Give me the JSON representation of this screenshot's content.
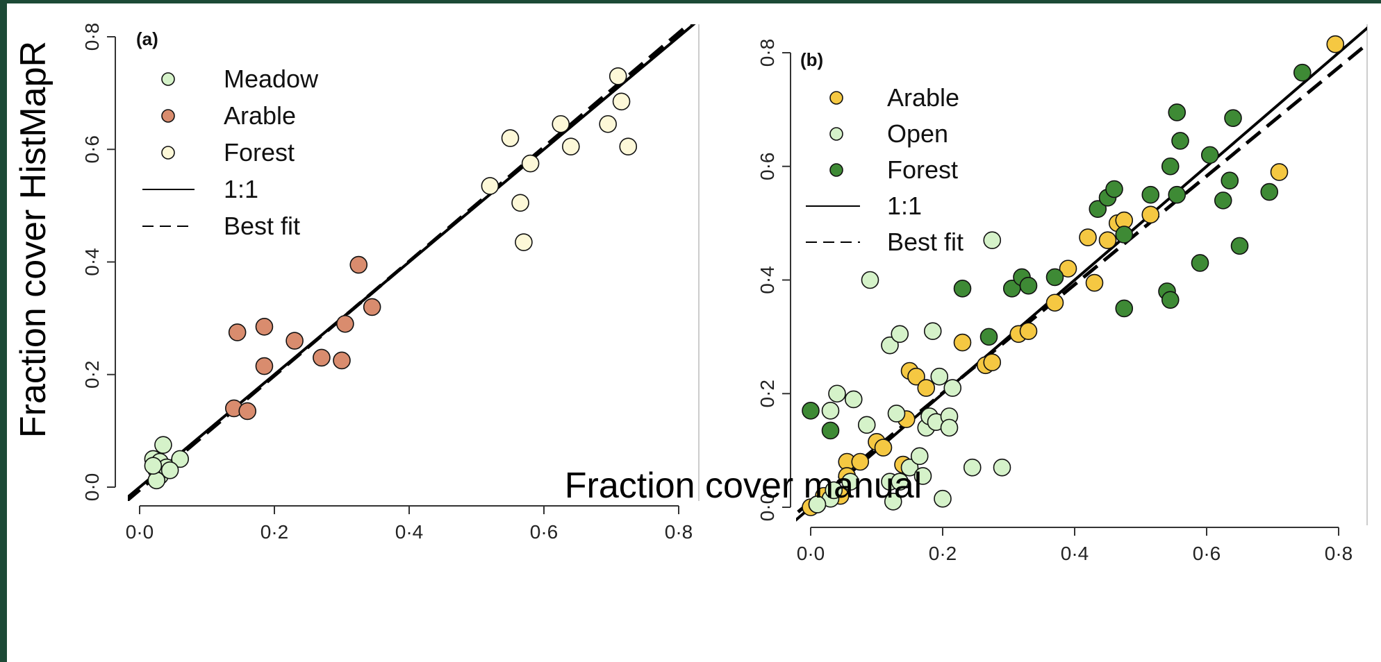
{
  "figure": {
    "xlabel": "Fraction cover manual",
    "ylabel": "Fraction cover HistMapR",
    "tick_labels": [
      "0·0",
      "0·2",
      "0·4",
      "0·6",
      "0·8"
    ]
  },
  "chart_data": [
    {
      "type": "scatter",
      "panel_label": "(a)",
      "title": "",
      "xlabel": "Fraction cover manual",
      "ylabel": "Fraction cover HistMapR",
      "xlim": [
        0,
        0.8
      ],
      "ylim": [
        0,
        0.8
      ],
      "ticks": [
        0,
        0.2,
        0.4,
        0.6,
        0.8
      ],
      "legend_position": "top-left",
      "series": [
        {
          "name": "Meadow",
          "color": "#d5f2c9",
          "points": [
            [
              0.02,
              0.05
            ],
            [
              0.025,
              0.03
            ],
            [
              0.03,
              0.02
            ],
            [
              0.03,
              0.045
            ],
            [
              0.035,
              0.075
            ],
            [
              0.04,
              0.035
            ],
            [
              0.025,
              0.012
            ],
            [
              0.06,
              0.05
            ],
            [
              0.02,
              0.038
            ],
            [
              0.045,
              0.03
            ]
          ]
        },
        {
          "name": "Arable",
          "color": "#d98c6e",
          "points": [
            [
              0.14,
              0.14
            ],
            [
              0.145,
              0.275
            ],
            [
              0.16,
              0.135
            ],
            [
              0.185,
              0.285
            ],
            [
              0.185,
              0.215
            ],
            [
              0.23,
              0.26
            ],
            [
              0.27,
              0.23
            ],
            [
              0.3,
              0.225
            ],
            [
              0.305,
              0.29
            ],
            [
              0.325,
              0.395
            ],
            [
              0.345,
              0.32
            ]
          ]
        },
        {
          "name": "Forest",
          "color": "#fdf8d8",
          "points": [
            [
              0.52,
              0.535
            ],
            [
              0.55,
              0.62
            ],
            [
              0.565,
              0.505
            ],
            [
              0.57,
              0.435
            ],
            [
              0.58,
              0.575
            ],
            [
              0.625,
              0.645
            ],
            [
              0.64,
              0.605
            ],
            [
              0.695,
              0.645
            ],
            [
              0.71,
              0.73
            ],
            [
              0.715,
              0.685
            ],
            [
              0.725,
              0.605
            ]
          ]
        }
      ],
      "lines": [
        {
          "name": "1:1",
          "style": "solid",
          "slope": 1,
          "intercept": 0
        },
        {
          "name": "Best fit",
          "style": "dashed",
          "slope": 1.015,
          "intercept": -0.005
        }
      ]
    },
    {
      "type": "scatter",
      "panel_label": "(b)",
      "title": "",
      "xlabel": "Fraction cover manual",
      "ylabel": "Fraction cover HistMapR",
      "xlim": [
        0,
        0.8
      ],
      "ylim": [
        0,
        0.8
      ],
      "ticks": [
        0,
        0.2,
        0.4,
        0.6,
        0.8
      ],
      "legend_position": "top-left",
      "series": [
        {
          "name": "Arable",
          "color": "#f5c842",
          "points": [
            [
              0.0,
              0.0
            ],
            [
              0.01,
              0.005
            ],
            [
              0.02,
              0.02
            ],
            [
              0.045,
              0.02
            ],
            [
              0.055,
              0.08
            ],
            [
              0.075,
              0.08
            ],
            [
              0.1,
              0.115
            ],
            [
              0.11,
              0.105
            ],
            [
              0.14,
              0.075
            ],
            [
              0.145,
              0.155
            ],
            [
              0.15,
              0.24
            ],
            [
              0.16,
              0.23
            ],
            [
              0.175,
              0.21
            ],
            [
              0.23,
              0.29
            ],
            [
              0.265,
              0.25
            ],
            [
              0.275,
              0.255
            ],
            [
              0.315,
              0.305
            ],
            [
              0.33,
              0.31
            ],
            [
              0.37,
              0.36
            ],
            [
              0.39,
              0.42
            ],
            [
              0.42,
              0.475
            ],
            [
              0.43,
              0.395
            ],
            [
              0.45,
              0.47
            ],
            [
              0.465,
              0.5
            ],
            [
              0.475,
              0.505
            ],
            [
              0.515,
              0.515
            ],
            [
              0.71,
              0.59
            ],
            [
              0.795,
              0.815
            ],
            [
              0.055,
              0.055
            ]
          ]
        },
        {
          "name": "Open",
          "color": "#d5f2c9",
          "points": [
            [
              0.03,
              0.015
            ],
            [
              0.035,
              0.03
            ],
            [
              0.04,
              0.2
            ],
            [
              0.03,
              0.17
            ],
            [
              0.06,
              0.045
            ],
            [
              0.065,
              0.19
            ],
            [
              0.085,
              0.145
            ],
            [
              0.09,
              0.4
            ],
            [
              0.12,
              0.285
            ],
            [
              0.12,
              0.045
            ],
            [
              0.125,
              0.01
            ],
            [
              0.135,
              0.305
            ],
            [
              0.135,
              0.045
            ],
            [
              0.13,
              0.165
            ],
            [
              0.15,
              0.07
            ],
            [
              0.165,
              0.09
            ],
            [
              0.17,
              0.055
            ],
            [
              0.175,
              0.14
            ],
            [
              0.18,
              0.16
            ],
            [
              0.185,
              0.31
            ],
            [
              0.19,
              0.15
            ],
            [
              0.195,
              0.23
            ],
            [
              0.2,
              0.015
            ],
            [
              0.21,
              0.16
            ],
            [
              0.21,
              0.14
            ],
            [
              0.215,
              0.21
            ],
            [
              0.245,
              0.07
            ],
            [
              0.275,
              0.47
            ],
            [
              0.29,
              0.07
            ],
            [
              0.01,
              0.005
            ]
          ]
        },
        {
          "name": "Forest",
          "color": "#3e8a35",
          "points": [
            [
              0.0,
              0.17
            ],
            [
              0.03,
              0.135
            ],
            [
              0.23,
              0.385
            ],
            [
              0.27,
              0.3
            ],
            [
              0.305,
              0.385
            ],
            [
              0.32,
              0.405
            ],
            [
              0.33,
              0.39
            ],
            [
              0.37,
              0.405
            ],
            [
              0.435,
              0.525
            ],
            [
              0.45,
              0.545
            ],
            [
              0.46,
              0.56
            ],
            [
              0.475,
              0.35
            ],
            [
              0.475,
              0.48
            ],
            [
              0.515,
              0.55
            ],
            [
              0.54,
              0.38
            ],
            [
              0.545,
              0.365
            ],
            [
              0.545,
              0.6
            ],
            [
              0.555,
              0.695
            ],
            [
              0.56,
              0.645
            ],
            [
              0.555,
              0.55
            ],
            [
              0.59,
              0.43
            ],
            [
              0.605,
              0.62
            ],
            [
              0.625,
              0.54
            ],
            [
              0.635,
              0.575
            ],
            [
              0.64,
              0.685
            ],
            [
              0.65,
              0.46
            ],
            [
              0.695,
              0.555
            ],
            [
              0.745,
              0.765
            ]
          ]
        }
      ],
      "lines": [
        {
          "name": "1:1",
          "style": "solid",
          "slope": 1,
          "intercept": 0
        },
        {
          "name": "Best fit",
          "style": "dashed",
          "slope": 0.955,
          "intercept": 0.01
        }
      ]
    }
  ]
}
